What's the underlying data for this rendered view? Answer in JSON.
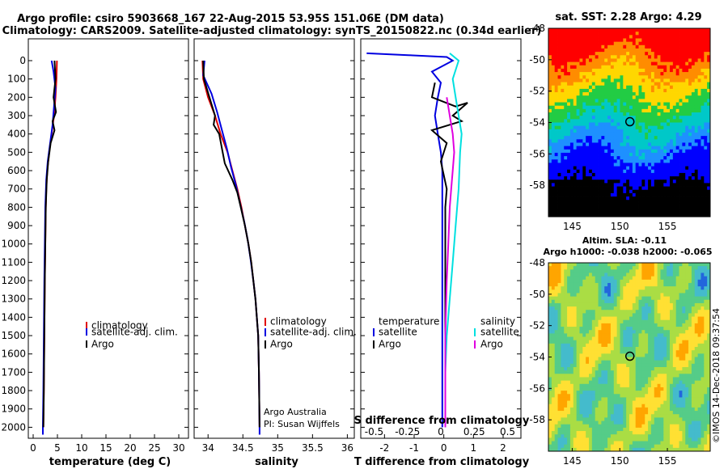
{
  "titles": {
    "line1": "Argo profile: csiro 5903668_167 22-Aug-2015 53.95S 151.06E (DM data)",
    "line2": "Climatology: CARS2009. Satellite-adjusted climatology: synTS_20150822.nc (0.34d earlier)"
  },
  "colors": {
    "climatology": "#e00000",
    "satellite": "#0000e0",
    "argo": "#000000",
    "sat_salinity": "#00e0e0",
    "argo_salinity": "#e000e0"
  },
  "depth_ticks": [
    0,
    100,
    200,
    300,
    400,
    500,
    600,
    700,
    800,
    900,
    1000,
    1100,
    1200,
    1300,
    1400,
    1500,
    1600,
    1700,
    1800,
    1900,
    2000
  ],
  "chart_data": [
    {
      "type": "line",
      "xlabel": "temperature (deg C)",
      "xlim": [
        -1,
        32
      ],
      "xticks": [
        0,
        5,
        10,
        15,
        20,
        25,
        30
      ],
      "ylim": [
        0,
        2060
      ],
      "legend": [
        "climatology",
        "satellite-adj. clim.",
        "Argo"
      ],
      "series": [
        {
          "name": "climatology",
          "color": "#e00000",
          "points": [
            [
              4.9,
              0
            ],
            [
              4.8,
              100
            ],
            [
              4.6,
              200
            ],
            [
              4.3,
              300
            ],
            [
              3.8,
              400
            ],
            [
              3.3,
              500
            ],
            [
              2.9,
              600
            ],
            [
              2.7,
              700
            ],
            [
              2.6,
              800
            ],
            [
              2.5,
              1000
            ],
            [
              2.4,
              1200
            ],
            [
              2.3,
              1500
            ],
            [
              2.2,
              1800
            ],
            [
              2.1,
              2000
            ]
          ]
        },
        {
          "name": "satellite-adj. clim.",
          "color": "#0000e0",
          "points": [
            [
              3.8,
              0
            ],
            [
              4.2,
              60
            ],
            [
              4.6,
              150
            ],
            [
              4.3,
              250
            ],
            [
              4.0,
              350
            ],
            [
              3.5,
              450
            ],
            [
              3.0,
              550
            ],
            [
              2.7,
              650
            ],
            [
              2.5,
              800
            ],
            [
              2.4,
              1000
            ],
            [
              2.3,
              1200
            ],
            [
              2.2,
              1500
            ],
            [
              2.1,
              1800
            ],
            [
              2.0,
              2000
            ],
            [
              2.0,
              2040
            ]
          ]
        },
        {
          "name": "Argo",
          "color": "#000000",
          "points": [
            [
              4.4,
              0
            ],
            [
              4.6,
              100
            ],
            [
              4.2,
              200
            ],
            [
              4.7,
              280
            ],
            [
              4.0,
              330
            ],
            [
              4.4,
              380
            ],
            [
              3.6,
              450
            ],
            [
              3.1,
              550
            ],
            [
              2.8,
              650
            ],
            [
              2.6,
              800
            ],
            [
              2.5,
              1000
            ],
            [
              2.4,
              1200
            ],
            [
              2.3,
              1500
            ],
            [
              2.2,
              1800
            ],
            [
              2.1,
              2000
            ]
          ]
        }
      ]
    },
    {
      "type": "line",
      "xlabel": "salinity",
      "xlim": [
        33.8,
        36.1
      ],
      "xticks": [
        34,
        34.5,
        35,
        35.5,
        36
      ],
      "ylim": [
        0,
        2060
      ],
      "legend": [
        "climatology",
        "satellite-adj. clim.",
        "Argo"
      ],
      "annotation": [
        "Argo Australia",
        "PI: Susan Wijffels"
      ],
      "series": [
        {
          "name": "climatology",
          "color": "#e00000",
          "points": [
            [
              33.92,
              0
            ],
            [
              33.93,
              100
            ],
            [
              34.0,
              200
            ],
            [
              34.1,
              300
            ],
            [
              34.18,
              400
            ],
            [
              34.28,
              500
            ],
            [
              34.35,
              600
            ],
            [
              34.42,
              700
            ],
            [
              34.48,
              800
            ],
            [
              34.53,
              900
            ],
            [
              34.58,
              1000
            ],
            [
              34.62,
              1100
            ],
            [
              34.65,
              1200
            ],
            [
              34.68,
              1300
            ],
            [
              34.7,
              1400
            ],
            [
              34.72,
              1500
            ],
            [
              34.73,
              1700
            ],
            [
              34.74,
              2000
            ]
          ]
        },
        {
          "name": "satellite-adj. clim.",
          "color": "#0000e0",
          "points": [
            [
              33.95,
              0
            ],
            [
              33.93,
              80
            ],
            [
              34.05,
              180
            ],
            [
              34.13,
              280
            ],
            [
              34.2,
              380
            ],
            [
              34.27,
              480
            ],
            [
              34.33,
              580
            ],
            [
              34.4,
              680
            ],
            [
              34.46,
              780
            ],
            [
              34.52,
              880
            ],
            [
              34.57,
              980
            ],
            [
              34.61,
              1080
            ],
            [
              34.65,
              1200
            ],
            [
              34.68,
              1300
            ],
            [
              34.7,
              1400
            ],
            [
              34.72,
              1500
            ],
            [
              34.73,
              1700
            ],
            [
              34.74,
              2000
            ],
            [
              34.74,
              2040
            ]
          ]
        },
        {
          "name": "Argo",
          "color": "#000000",
          "points": [
            [
              33.93,
              0
            ],
            [
              33.94,
              100
            ],
            [
              34.02,
              200
            ],
            [
              34.1,
              300
            ],
            [
              34.08,
              350
            ],
            [
              34.16,
              400
            ],
            [
              34.2,
              480
            ],
            [
              34.24,
              560
            ],
            [
              34.35,
              650
            ],
            [
              34.42,
              720
            ],
            [
              34.47,
              800
            ],
            [
              34.53,
              900
            ],
            [
              34.58,
              1000
            ],
            [
              34.62,
              1100
            ],
            [
              34.65,
              1200
            ],
            [
              34.68,
              1300
            ],
            [
              34.7,
              1400
            ],
            [
              34.72,
              1500
            ],
            [
              34.73,
              1700
            ],
            [
              34.74,
              2000
            ]
          ]
        }
      ]
    },
    {
      "type": "line",
      "xlabel": "T difference from climatology",
      "xlabel_top": "S difference from climatology",
      "xlim": [
        -2.8,
        2.6
      ],
      "xticks": [
        -2,
        -1,
        0,
        1,
        2
      ],
      "xticks_top": [
        "-0.5",
        "-0.25",
        "0",
        "0.25",
        "0.5"
      ],
      "ylim": [
        0,
        2060
      ],
      "legend_temperature": {
        "title": "temperature",
        "items": [
          "satellite",
          "Argo"
        ]
      },
      "legend_salinity": {
        "title": "salinity",
        "items": [
          "satellite",
          "Argo"
        ]
      },
      "series": [
        {
          "name": "satellite T",
          "color": "#0000e0",
          "points": [
            [
              -2.6,
              -40
            ],
            [
              -1.2,
              -30
            ],
            [
              0.1,
              -20
            ],
            [
              0.3,
              0
            ],
            [
              -0.4,
              60
            ],
            [
              -0.1,
              120
            ],
            [
              -0.2,
              200
            ],
            [
              -0.3,
              300
            ],
            [
              -0.2,
              400
            ],
            [
              -0.1,
              500
            ],
            [
              -0.05,
              600
            ],
            [
              -0.05,
              800
            ],
            [
              -0.05,
              1000
            ],
            [
              -0.05,
              1500
            ],
            [
              -0.05,
              2000
            ]
          ]
        },
        {
          "name": "Argo T",
          "color": "#000000",
          "points": [
            [
              -0.3,
              120
            ],
            [
              -0.4,
              200
            ],
            [
              0.4,
              250
            ],
            [
              0.8,
              230
            ],
            [
              0.3,
              300
            ],
            [
              0.6,
              330
            ],
            [
              -0.4,
              380
            ],
            [
              0.1,
              450
            ],
            [
              -0.1,
              550
            ],
            [
              0.1,
              700
            ],
            [
              0.05,
              800
            ],
            [
              0.05,
              1000
            ],
            [
              0.05,
              1500
            ],
            [
              0.05,
              2000
            ]
          ]
        },
        {
          "name": "satellite S",
          "color": "#00e0e0",
          "points": [
            [
              0.2,
              -40
            ],
            [
              0.5,
              0
            ],
            [
              0.3,
              100
            ],
            [
              0.4,
              200
            ],
            [
              0.5,
              300
            ],
            [
              0.6,
              400
            ],
            [
              0.55,
              500
            ],
            [
              0.5,
              700
            ],
            [
              0.4,
              900
            ],
            [
              0.3,
              1100
            ],
            [
              0.2,
              1300
            ],
            [
              0.1,
              1500
            ],
            [
              0.05,
              1700
            ],
            [
              0.05,
              2000
            ]
          ]
        },
        {
          "name": "Argo S",
          "color": "#e000e0",
          "points": [
            [
              0.1,
              200
            ],
            [
              0.2,
              300
            ],
            [
              0.3,
              400
            ],
            [
              0.35,
              500
            ],
            [
              0.3,
              600
            ],
            [
              0.25,
              700
            ],
            [
              0.2,
              800
            ],
            [
              0.15,
              1000
            ],
            [
              0.1,
              1200
            ],
            [
              0.05,
              1500
            ],
            [
              0.05,
              2000
            ]
          ]
        }
      ]
    },
    {
      "type": "heatmap",
      "title": "sat. SST: 2.28 Argo: 4.29",
      "xlim": [
        142.5,
        159.5
      ],
      "ylim": [
        -60,
        -48
      ],
      "xticks": [
        145,
        150,
        155
      ],
      "yticks": [
        -48,
        -50,
        -52,
        -54,
        -56,
        -58
      ],
      "marker": [
        151.06,
        -53.95
      ]
    },
    {
      "type": "heatmap",
      "title": "Altim. SLA: -0.11",
      "subtitle": "Argo h1000: -0.038 h2000: -0.065",
      "xlim": [
        142.5,
        159.5
      ],
      "ylim": [
        -60,
        -48
      ],
      "xticks": [
        145,
        150,
        155
      ],
      "yticks": [
        -48,
        -50,
        -52,
        -54,
        -56,
        -58
      ],
      "marker": [
        151.06,
        -53.95
      ]
    }
  ],
  "watermark": "©IMOS 14-Dec-2018 09:37:54"
}
